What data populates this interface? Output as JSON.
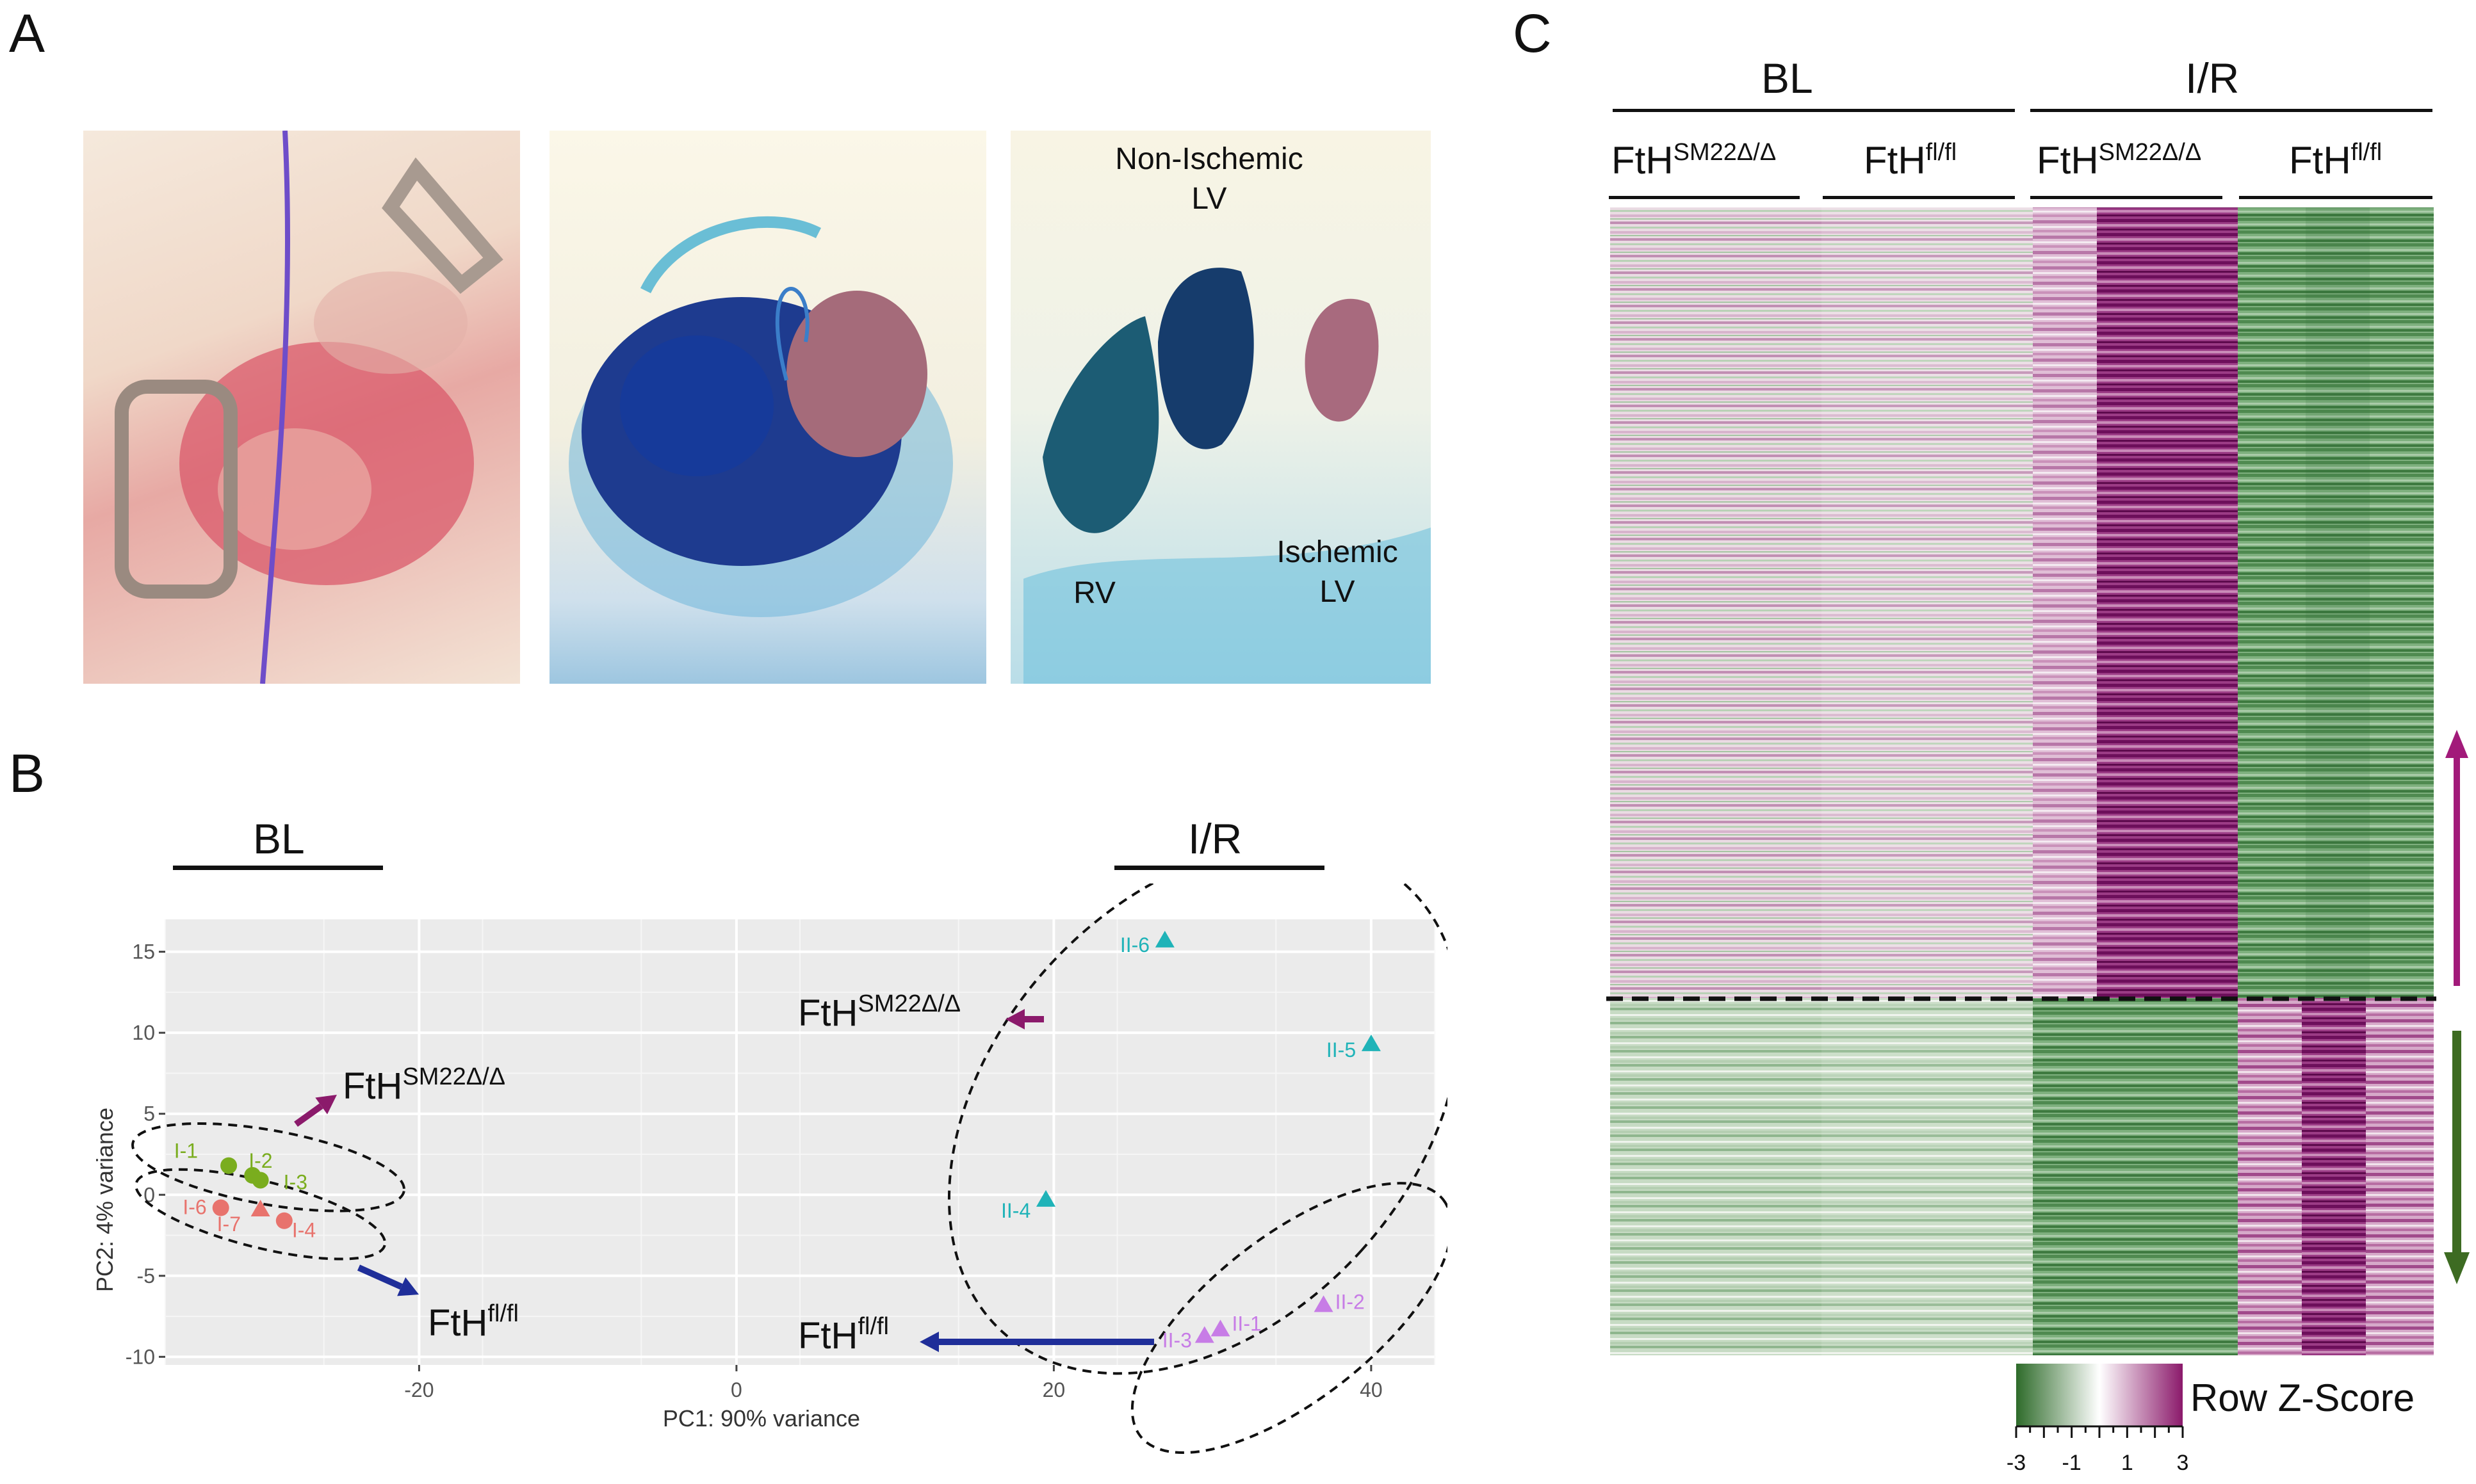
{
  "panels": {
    "A": {
      "letter": "A",
      "photo3_labels": {
        "non_ischemic": [
          "Non-Ischemic",
          "LV"
        ],
        "rv": "RV",
        "ischemic": [
          "Ischemic",
          "LV"
        ]
      }
    },
    "B": {
      "letter": "B",
      "group_labels": [
        "BL",
        "I/R"
      ]
    },
    "C": {
      "letter": "C",
      "group_labels": [
        "BL",
        "I/R"
      ],
      "column_groups": [
        {
          "base": "FtH",
          "sup": "SM22Δ/Δ"
        },
        {
          "base": "FtH",
          "sup": "fl/fl"
        },
        {
          "base": "FtH",
          "sup": "SM22Δ/Δ"
        },
        {
          "base": "FtH",
          "sup": "fl/fl"
        }
      ],
      "legend": {
        "title": "Row Z-Score",
        "ticks": [
          "-3",
          "-1",
          "1",
          "3"
        ],
        "low_color": "#2e6b2a",
        "mid_color": "#ffffff",
        "high_color": "#8b1a6b"
      },
      "arrow_up_color": "#a21a7a",
      "arrow_down_color": "#3d6b22"
    }
  },
  "chart_data": {
    "type": "scatter",
    "xlabel": "PC1: 90% variance",
    "ylabel": "PC2: 4% variance",
    "xlim": [
      -36,
      44
    ],
    "ylim": [
      -10.5,
      17
    ],
    "xticks": [
      -20,
      0,
      20,
      40
    ],
    "yticks": [
      15,
      10,
      5,
      0,
      -5,
      -10
    ],
    "grid": true,
    "series": [
      {
        "name": "I",
        "color": "#e8736d",
        "label_color_override": {
          "I-1": "#7aad1e",
          "I-2": "#7aad1e",
          "I-3": "#7aad1e"
        },
        "points": [
          {
            "label": "I-1",
            "x": -32,
            "y": 1.8,
            "shape": "circle",
            "color": "#7aad1e"
          },
          {
            "label": "I-2",
            "x": -30.5,
            "y": 1.2,
            "shape": "circle",
            "color": "#7aad1e"
          },
          {
            "label": "I-3",
            "x": -30,
            "y": 0.9,
            "shape": "circle",
            "color": "#7aad1e"
          },
          {
            "label": "I-6",
            "x": -32.5,
            "y": -0.8,
            "shape": "circle",
            "color": "#e8736d"
          },
          {
            "label": "I-7",
            "x": -30,
            "y": -0.9,
            "shape": "triangle",
            "color": "#e8736d"
          },
          {
            "label": "I-4",
            "x": -28.5,
            "y": -1.6,
            "shape": "circle",
            "color": "#e8736d"
          }
        ]
      },
      {
        "name": "II",
        "color": "#1fb3b8",
        "points": [
          {
            "label": "II-6",
            "x": 27,
            "y": 15.7,
            "shape": "triangle",
            "color": "#1fb3b8"
          },
          {
            "label": "II-5",
            "x": 40,
            "y": 9.3,
            "shape": "triangle",
            "color": "#1fb3b8"
          },
          {
            "label": "II-4",
            "x": 19.5,
            "y": -0.3,
            "shape": "triangle",
            "color": "#1fb3b8"
          },
          {
            "label": "II-2",
            "x": 37,
            "y": -6.8,
            "shape": "triangle",
            "color": "#c77ce6"
          },
          {
            "label": "II-1",
            "x": 30.5,
            "y": -8.3,
            "shape": "triangle",
            "color": "#c77ce6"
          },
          {
            "label": "II-3",
            "x": 29.5,
            "y": -8.7,
            "shape": "triangle",
            "color": "#c77ce6"
          }
        ]
      }
    ],
    "annotations": [
      {
        "base": "FtH",
        "sup": "SM22Δ/Δ",
        "arrow_color": "#8b1a6b"
      },
      {
        "base": "FtH",
        "sup": "fl/fl",
        "arrow_color": "#1f2e99"
      },
      {
        "base": "FtH",
        "sup": "SM22Δ/Δ",
        "arrow_color": "#8b1a6b"
      },
      {
        "base": "FtH",
        "sup": "fl/fl",
        "arrow_color": "#1f2e99"
      }
    ]
  }
}
